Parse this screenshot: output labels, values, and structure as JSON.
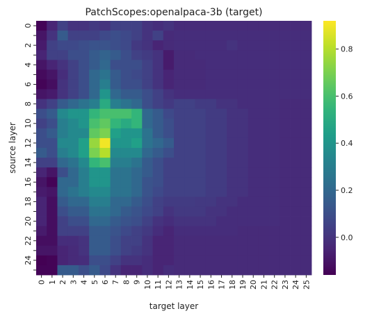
{
  "chart_data": {
    "type": "heatmap",
    "title": "PatchScopes:openalpaca-3b (target)",
    "x_label": "target layer",
    "y_label": "source layer",
    "x_categories": [
      "0",
      "1",
      "2",
      "3",
      "4",
      "5",
      "6",
      "7",
      "8",
      "9",
      "10",
      "11",
      "12",
      "13",
      "14",
      "15",
      "16",
      "17",
      "18",
      "19",
      "20",
      "21",
      "22",
      "23",
      "24",
      "25"
    ],
    "y_categories": [
      "0",
      null,
      "2",
      null,
      "4",
      null,
      "6",
      null,
      "8",
      null,
      "10",
      null,
      "12",
      null,
      "14",
      null,
      "16",
      null,
      "18",
      null,
      "20",
      null,
      "22",
      null,
      "24",
      null
    ],
    "colormap": "viridis",
    "clim": [
      -0.16,
      0.92
    ],
    "colorbar_ticks": [
      {
        "value": 0,
        "label": "0.0"
      },
      0.2,
      0.4,
      0.6,
      0.8
    ],
    "values": [
      [
        -0.15,
        -0.05,
        0.05,
        0.0,
        0.0,
        0.02,
        0.0,
        0.05,
        0.05,
        0.05,
        0.0,
        -0.02,
        0.0,
        -0.03,
        -0.03,
        -0.03,
        -0.03,
        -0.03,
        -0.03,
        -0.03,
        -0.03,
        -0.03,
        -0.03,
        -0.03,
        -0.03,
        -0.03
      ],
      [
        -0.1,
        0.0,
        0.15,
        0.05,
        0.05,
        0.05,
        0.08,
        0.1,
        0.08,
        0.05,
        0.0,
        0.05,
        -0.03,
        -0.02,
        -0.02,
        -0.02,
        -0.02,
        -0.02,
        -0.02,
        -0.02,
        -0.02,
        -0.02,
        -0.02,
        -0.02,
        -0.02,
        -0.02
      ],
      [
        -0.08,
        0.05,
        0.08,
        0.08,
        0.1,
        0.12,
        0.12,
        0.1,
        0.08,
        0.02,
        0.0,
        -0.05,
        -0.03,
        -0.02,
        -0.02,
        -0.02,
        -0.02,
        -0.02,
        0.0,
        -0.02,
        -0.02,
        -0.02,
        -0.02,
        -0.02,
        -0.02,
        -0.02
      ],
      [
        -0.05,
        0.05,
        0.05,
        0.1,
        0.1,
        0.15,
        0.18,
        0.15,
        0.1,
        0.05,
        0.03,
        0.0,
        -0.08,
        -0.03,
        -0.03,
        -0.02,
        -0.02,
        -0.02,
        -0.02,
        -0.02,
        -0.02,
        -0.02,
        -0.02,
        -0.02,
        -0.02,
        -0.02
      ],
      [
        -0.1,
        -0.05,
        0.0,
        0.05,
        0.1,
        0.15,
        0.2,
        0.1,
        0.1,
        0.1,
        0.05,
        0.0,
        -0.08,
        -0.03,
        -0.03,
        -0.03,
        -0.02,
        -0.02,
        -0.02,
        -0.02,
        -0.02,
        -0.02,
        -0.02,
        -0.02,
        -0.02,
        -0.02
      ],
      [
        -0.13,
        -0.1,
        -0.02,
        0.05,
        0.1,
        0.2,
        0.25,
        0.15,
        0.1,
        0.08,
        0.05,
        0.0,
        -0.05,
        -0.03,
        -0.03,
        -0.03,
        -0.02,
        -0.02,
        -0.02,
        -0.02,
        -0.02,
        -0.02,
        -0.02,
        -0.02,
        -0.02,
        -0.02
      ],
      [
        -0.15,
        -0.12,
        0.0,
        0.05,
        0.1,
        0.2,
        0.3,
        0.15,
        0.1,
        0.1,
        0.05,
        0.0,
        -0.05,
        -0.03,
        -0.03,
        -0.03,
        -0.02,
        -0.02,
        -0.02,
        -0.02,
        -0.02,
        -0.02,
        -0.02,
        -0.02,
        -0.02,
        -0.02
      ],
      [
        -0.1,
        -0.08,
        0.0,
        0.05,
        0.1,
        0.2,
        0.4,
        0.2,
        0.15,
        0.15,
        0.1,
        0.05,
        0.0,
        -0.02,
        -0.02,
        -0.02,
        -0.02,
        -0.02,
        -0.02,
        -0.02,
        -0.02,
        -0.02,
        -0.02,
        -0.02,
        -0.02,
        -0.02
      ],
      [
        0.0,
        0.05,
        0.15,
        0.2,
        0.25,
        0.3,
        0.5,
        0.3,
        0.25,
        0.2,
        0.1,
        0.05,
        0.02,
        0.05,
        0.05,
        0.03,
        0.03,
        0.0,
        0.0,
        -0.02,
        -0.02,
        -0.02,
        -0.02,
        -0.03,
        -0.03,
        -0.03
      ],
      [
        0.1,
        0.15,
        0.35,
        0.4,
        0.4,
        0.55,
        0.6,
        0.6,
        0.6,
        0.55,
        0.2,
        0.15,
        0.08,
        0.05,
        0.05,
        0.05,
        0.03,
        0.03,
        0.0,
        0.0,
        -0.02,
        -0.02,
        -0.02,
        -0.03,
        -0.03,
        -0.03
      ],
      [
        0.05,
        0.1,
        0.3,
        0.35,
        0.4,
        0.6,
        0.65,
        0.55,
        0.5,
        0.55,
        0.2,
        0.15,
        0.1,
        0.05,
        0.05,
        0.05,
        0.03,
        0.03,
        0.0,
        0.0,
        -0.02,
        -0.02,
        -0.02,
        -0.03,
        -0.03,
        -0.03
      ],
      [
        0.1,
        0.15,
        0.3,
        0.35,
        0.35,
        0.65,
        0.7,
        0.45,
        0.4,
        0.4,
        0.25,
        0.15,
        0.1,
        0.05,
        0.05,
        0.05,
        0.03,
        0.03,
        0.0,
        0.0,
        -0.02,
        -0.02,
        -0.02,
        -0.03,
        -0.03,
        -0.03
      ],
      [
        0.1,
        0.1,
        0.35,
        0.35,
        0.45,
        0.75,
        0.9,
        0.4,
        0.4,
        0.45,
        0.25,
        0.2,
        0.15,
        0.05,
        0.05,
        0.05,
        0.03,
        0.03,
        0.0,
        0.0,
        -0.02,
        -0.02,
        -0.02,
        -0.03,
        -0.03,
        -0.03
      ],
      [
        0.15,
        0.1,
        0.3,
        0.35,
        0.45,
        0.7,
        0.8,
        0.35,
        0.35,
        0.35,
        0.2,
        0.15,
        0.1,
        0.05,
        0.05,
        0.05,
        0.03,
        0.03,
        0.0,
        0.0,
        -0.02,
        -0.02,
        -0.02,
        -0.03,
        -0.03,
        -0.03
      ],
      [
        0.05,
        0.05,
        0.2,
        0.25,
        0.35,
        0.55,
        0.6,
        0.3,
        0.3,
        0.25,
        0.15,
        0.1,
        0.05,
        0.05,
        0.05,
        0.05,
        0.03,
        0.03,
        0.0,
        0.0,
        -0.02,
        -0.02,
        -0.02,
        -0.03,
        -0.03,
        -0.03
      ],
      [
        -0.05,
        -0.1,
        0.1,
        0.2,
        0.3,
        0.4,
        0.4,
        0.25,
        0.25,
        0.2,
        0.15,
        0.1,
        0.05,
        0.05,
        0.05,
        0.05,
        0.03,
        0.03,
        0.0,
        0.0,
        -0.02,
        -0.02,
        -0.02,
        -0.03,
        -0.03,
        -0.03
      ],
      [
        -0.1,
        -0.15,
        0.2,
        0.2,
        0.3,
        0.4,
        0.4,
        0.25,
        0.25,
        0.2,
        0.12,
        0.1,
        0.05,
        0.05,
        0.05,
        0.05,
        0.03,
        0.03,
        0.0,
        0.0,
        -0.02,
        -0.02,
        -0.02,
        -0.03,
        -0.03,
        -0.03
      ],
      [
        -0.08,
        -0.1,
        0.2,
        0.25,
        0.3,
        0.35,
        0.35,
        0.25,
        0.25,
        0.2,
        0.12,
        0.08,
        0.05,
        0.05,
        0.05,
        0.05,
        0.03,
        0.03,
        0.0,
        0.0,
        -0.02,
        -0.02,
        -0.02,
        -0.03,
        -0.03,
        -0.03
      ],
      [
        -0.05,
        -0.12,
        0.15,
        0.2,
        0.2,
        0.3,
        0.3,
        0.2,
        0.2,
        0.15,
        0.1,
        0.05,
        0.03,
        0.03,
        0.03,
        0.02,
        0.02,
        0.0,
        0.0,
        -0.02,
        -0.02,
        -0.02,
        -0.02,
        -0.03,
        -0.03,
        -0.03
      ],
      [
        -0.05,
        -0.12,
        0.1,
        0.15,
        0.15,
        0.25,
        0.25,
        0.2,
        0.15,
        0.12,
        0.08,
        0.05,
        0.0,
        0.02,
        0.02,
        0.02,
        0.0,
        0.0,
        -0.02,
        -0.02,
        -0.02,
        -0.02,
        -0.02,
        -0.03,
        -0.03,
        -0.03
      ],
      [
        -0.05,
        -0.12,
        0.05,
        0.1,
        0.1,
        0.2,
        0.2,
        0.15,
        0.12,
        0.1,
        0.05,
        0.0,
        -0.02,
        0.0,
        0.0,
        0.0,
        0.0,
        -0.02,
        -0.02,
        -0.02,
        -0.02,
        -0.02,
        -0.02,
        -0.03,
        -0.03,
        -0.03
      ],
      [
        -0.08,
        -0.12,
        0.05,
        0.05,
        0.05,
        0.15,
        0.15,
        0.12,
        0.08,
        0.05,
        0.02,
        -0.02,
        -0.05,
        -0.02,
        -0.02,
        -0.02,
        -0.02,
        -0.02,
        -0.02,
        -0.03,
        -0.03,
        -0.03,
        -0.03,
        -0.03,
        -0.03,
        -0.03
      ],
      [
        -0.12,
        -0.12,
        -0.02,
        -0.02,
        0.0,
        0.15,
        0.15,
        0.1,
        0.05,
        0.05,
        0.0,
        -0.05,
        -0.05,
        -0.03,
        -0.03,
        -0.03,
        -0.03,
        -0.03,
        -0.03,
        -0.03,
        -0.03,
        -0.03,
        -0.03,
        -0.03,
        -0.03,
        -0.03
      ],
      [
        -0.1,
        -0.1,
        -0.05,
        -0.03,
        0.0,
        0.15,
        0.15,
        0.1,
        0.05,
        0.03,
        0.0,
        -0.05,
        -0.05,
        -0.03,
        -0.03,
        -0.03,
        -0.03,
        -0.03,
        -0.03,
        -0.03,
        -0.03,
        -0.03,
        -0.03,
        -0.03,
        -0.03,
        -0.03
      ],
      [
        -0.16,
        -0.15,
        -0.05,
        -0.03,
        -0.02,
        0.1,
        0.1,
        0.05,
        0.0,
        0.0,
        -0.02,
        -0.05,
        -0.05,
        -0.03,
        -0.03,
        -0.03,
        -0.03,
        -0.03,
        -0.03,
        -0.03,
        -0.03,
        -0.03,
        -0.03,
        -0.03,
        -0.03,
        -0.03
      ],
      [
        -0.15,
        -0.15,
        0.15,
        0.15,
        0.1,
        0.15,
        0.08,
        0.0,
        -0.05,
        -0.05,
        -0.02,
        -0.05,
        -0.02,
        -0.03,
        -0.03,
        -0.03,
        -0.03,
        -0.03,
        -0.03,
        -0.03,
        -0.03,
        -0.03,
        -0.03,
        -0.03,
        -0.03,
        -0.03
      ]
    ]
  }
}
